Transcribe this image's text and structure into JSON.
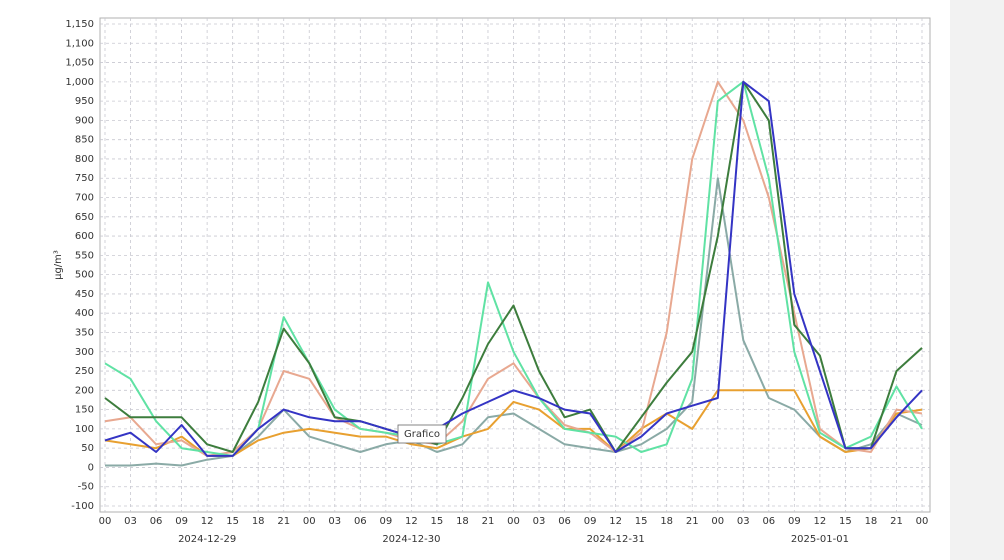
{
  "chart_data": {
    "type": "line",
    "y_label": "µg/m³",
    "tooltip": "Grafico",
    "grid": true,
    "xlim": [
      0,
      96
    ],
    "ylim": [
      -100,
      1150
    ],
    "x": [
      0,
      3,
      6,
      9,
      12,
      15,
      18,
      21,
      24,
      27,
      30,
      33,
      36,
      39,
      42,
      45,
      48,
      51,
      54,
      57,
      60,
      63,
      66,
      69,
      72,
      75,
      78,
      81,
      84,
      87,
      90,
      93,
      96
    ],
    "xticks": [
      {
        "value": 0,
        "label": "00"
      },
      {
        "value": 3,
        "label": "03"
      },
      {
        "value": 6,
        "label": "06"
      },
      {
        "value": 9,
        "label": "09"
      },
      12,
      15,
      18,
      21,
      {
        "value": 24,
        "label": "00"
      },
      {
        "value": 27,
        "label": "03"
      },
      {
        "value": 30,
        "label": "06"
      },
      {
        "value": 33,
        "label": "09"
      },
      {
        "value": 36,
        "label": "12"
      },
      {
        "value": 39,
        "label": "15"
      },
      {
        "value": 42,
        "label": "18"
      },
      {
        "value": 45,
        "label": "21"
      },
      {
        "value": 48,
        "label": "00"
      },
      {
        "value": 51,
        "label": "03"
      },
      {
        "value": 54,
        "label": "06"
      },
      {
        "value": 57,
        "label": "09"
      },
      {
        "value": 60,
        "label": "12"
      },
      {
        "value": 63,
        "label": "15"
      },
      {
        "value": 66,
        "label": "18"
      },
      {
        "value": 69,
        "label": "21"
      },
      {
        "value": 72,
        "label": "00"
      },
      {
        "value": 75,
        "label": "03"
      },
      {
        "value": 78,
        "label": "06"
      },
      {
        "value": 81,
        "label": "09"
      },
      {
        "value": 84,
        "label": "12"
      },
      {
        "value": 87,
        "label": "15"
      },
      {
        "value": 90,
        "label": "18"
      },
      {
        "value": 93,
        "label": "21"
      },
      {
        "value": 96,
        "label": "00"
      }
    ],
    "day_labels": [
      {
        "value": 12,
        "label": "2024-12-29"
      },
      {
        "value": 36,
        "label": "2024-12-30"
      },
      {
        "value": 60,
        "label": "2024-12-31"
      },
      {
        "value": 84,
        "label": "2025-01-01"
      }
    ],
    "yticks": [
      -100,
      -50,
      0,
      50,
      100,
      150,
      200,
      250,
      300,
      350,
      400,
      450,
      500,
      550,
      600,
      650,
      700,
      750,
      800,
      850,
      900,
      950,
      {
        "value": 1000,
        "label": "1,000"
      },
      {
        "value": 1050,
        "label": "1,050"
      },
      {
        "value": 1100,
        "label": "1,100"
      },
      {
        "value": 1150,
        "label": "1,150"
      }
    ],
    "series": [
      {
        "color": "#8aaaa6",
        "values": [
          5,
          5,
          10,
          5,
          20,
          30,
          80,
          150,
          80,
          60,
          40,
          60,
          70,
          40,
          60,
          130,
          140,
          100,
          60,
          50,
          40,
          60,
          100,
          170,
          750,
          330,
          180,
          150,
          80,
          40,
          60,
          140,
          110
        ]
      },
      {
        "color": "#e8a030",
        "values": [
          70,
          60,
          50,
          80,
          30,
          30,
          70,
          90,
          100,
          90,
          80,
          80,
          60,
          50,
          80,
          100,
          170,
          150,
          100,
          100,
          40,
          100,
          140,
          100,
          200,
          200,
          200,
          200,
          80,
          40,
          50,
          140,
          150
        ]
      },
      {
        "color": "#e8a890",
        "values": [
          120,
          130,
          60,
          70,
          30,
          40,
          100,
          250,
          230,
          130,
          100,
          90,
          70,
          60,
          120,
          230,
          270,
          180,
          110,
          90,
          40,
          90,
          350,
          800,
          1000,
          900,
          700,
          400,
          100,
          50,
          40,
          150,
          140
        ]
      },
      {
        "color": "#60e2a4",
        "values": [
          270,
          230,
          120,
          50,
          40,
          30,
          100,
          390,
          270,
          150,
          100,
          90,
          80,
          60,
          80,
          480,
          300,
          180,
          100,
          90,
          80,
          40,
          60,
          230,
          950,
          1000,
          750,
          300,
          90,
          50,
          80,
          210,
          100
        ]
      },
      {
        "color": "#3d7d3d",
        "values": [
          180,
          130,
          130,
          130,
          60,
          40,
          170,
          360,
          270,
          130,
          120,
          100,
          80,
          60,
          180,
          320,
          420,
          250,
          130,
          150,
          40,
          130,
          220,
          300,
          600,
          1000,
          900,
          370,
          290,
          50,
          50,
          250,
          310
        ]
      },
      {
        "color": "#3434c4",
        "values": [
          70,
          90,
          40,
          110,
          30,
          30,
          100,
          150,
          130,
          120,
          120,
          100,
          80,
          100,
          140,
          170,
          200,
          180,
          150,
          140,
          40,
          80,
          140,
          160,
          180,
          1000,
          950,
          450,
          250,
          50,
          50,
          130,
          200
        ]
      }
    ]
  }
}
